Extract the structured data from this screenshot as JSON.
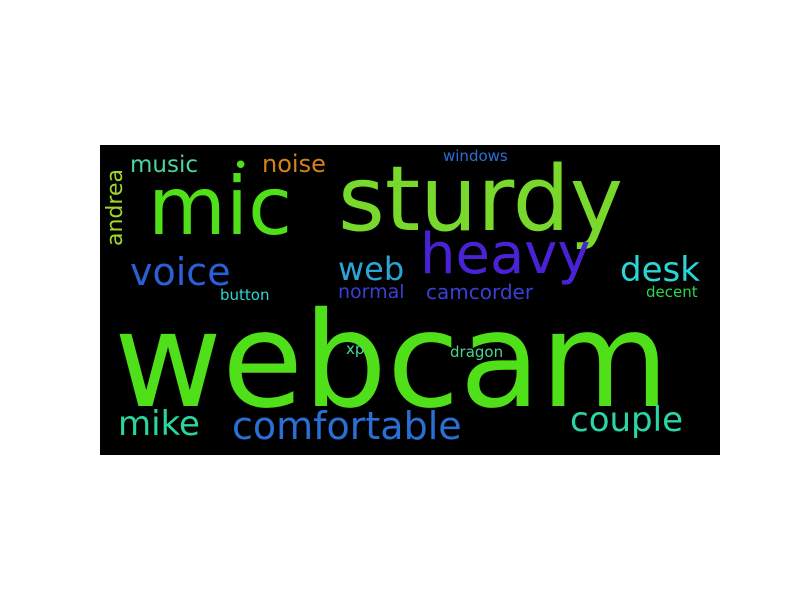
{
  "words": [
    {
      "text": "webcam",
      "color": "#4fe01a"
    },
    {
      "text": "sturdy",
      "color": "#78d82b"
    },
    {
      "text": "mic",
      "color": "#4fe01a"
    },
    {
      "text": "heavy",
      "color": "#4a22d6"
    },
    {
      "text": "voice",
      "color": "#2a5fd6"
    },
    {
      "text": "web",
      "color": "#2aa6d6"
    },
    {
      "text": "desk",
      "color": "#2ad6d6"
    },
    {
      "text": "comfortable",
      "color": "#2a6fd6"
    },
    {
      "text": "couple",
      "color": "#2ad6a6"
    },
    {
      "text": "mike",
      "color": "#2ad69a"
    },
    {
      "text": "camcorder",
      "color": "#3a3fd6"
    },
    {
      "text": "normal",
      "color": "#3a3fd6"
    },
    {
      "text": "noise",
      "color": "#d6801a"
    },
    {
      "text": "music",
      "color": "#4ad6a0"
    },
    {
      "text": "andrea",
      "color": "#a0d62a"
    },
    {
      "text": "windows",
      "color": "#2a6fd6"
    },
    {
      "text": "button",
      "color": "#2ad6d6"
    },
    {
      "text": "decent",
      "color": "#2ad650"
    },
    {
      "text": "xp",
      "color": "#4ad690"
    },
    {
      "text": "dragon",
      "color": "#4ad690"
    },
    {
      "text": "•",
      "color": "#4fe01a"
    }
  ]
}
